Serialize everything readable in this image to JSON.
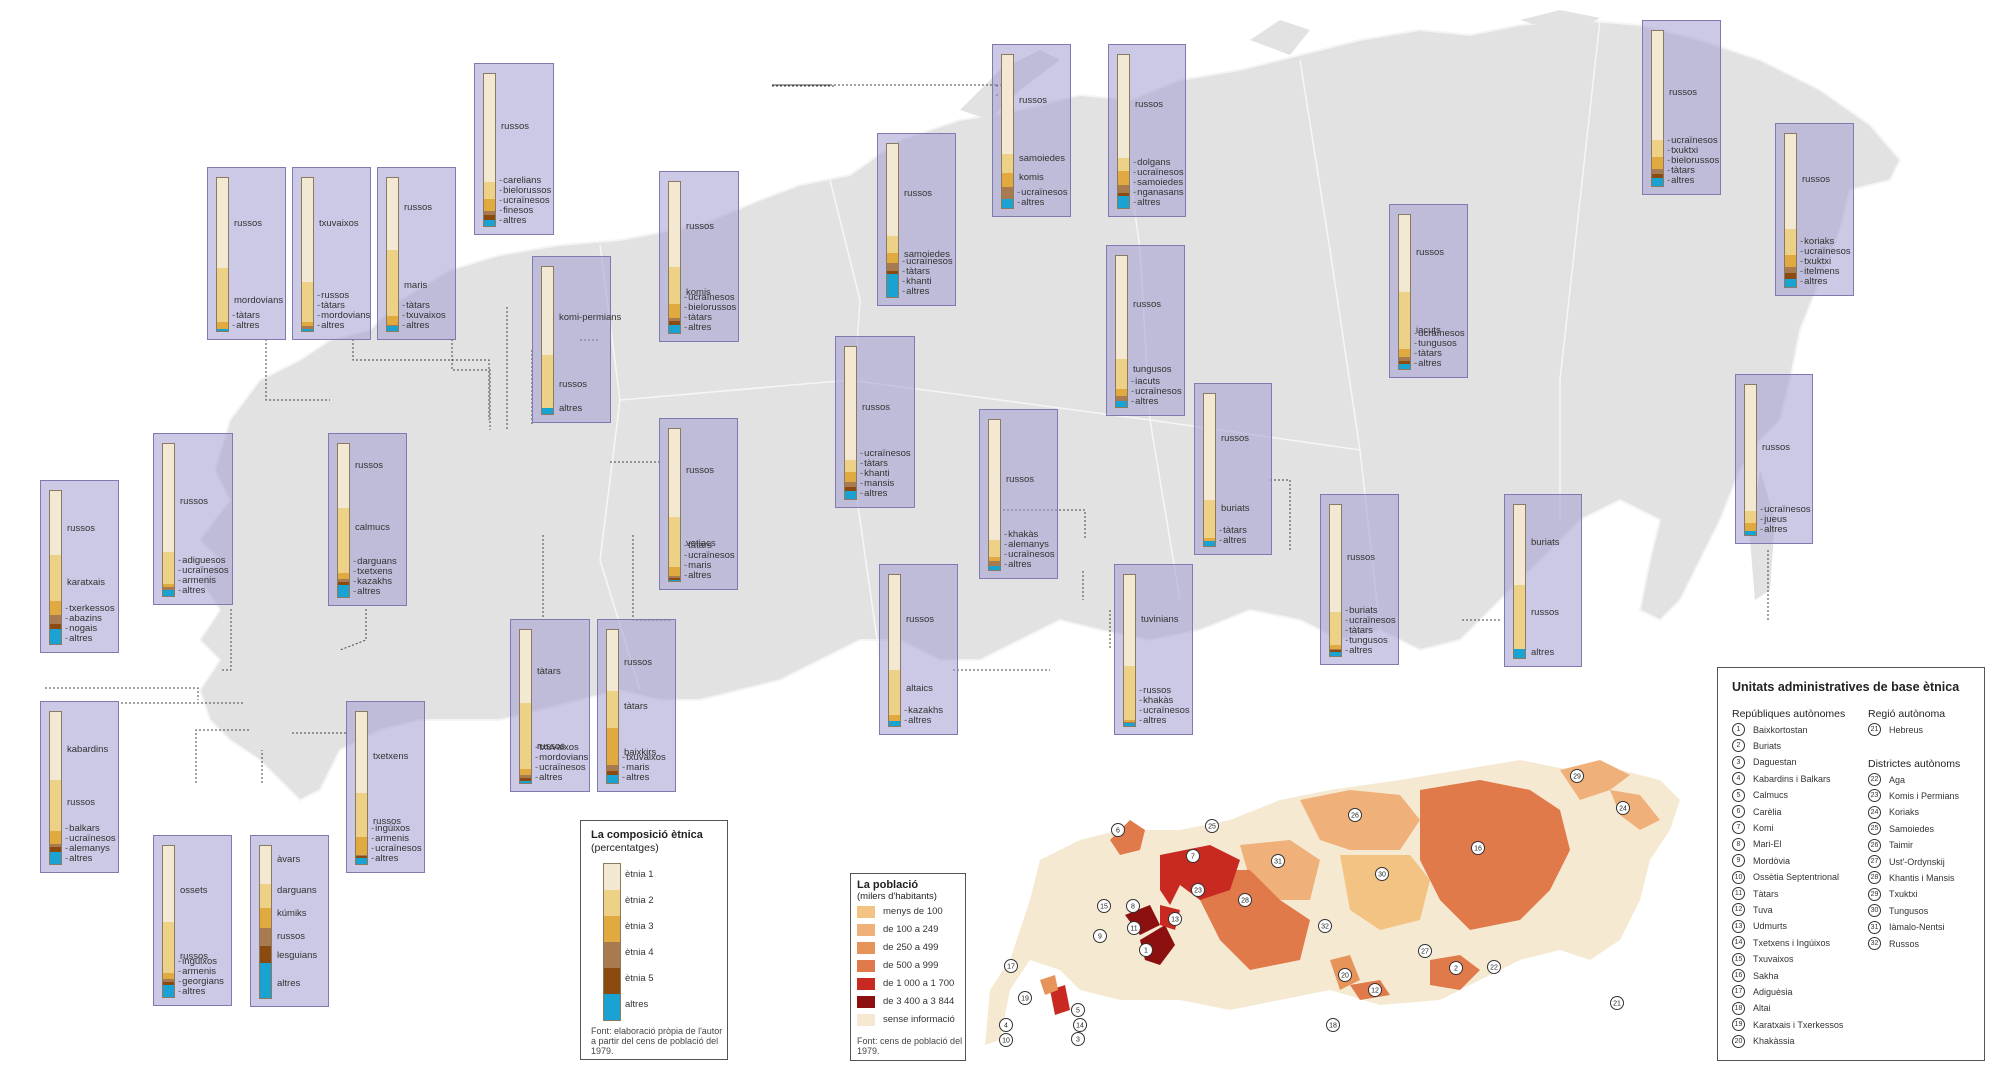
{
  "colors": {
    "etnia1": "#f3e8d2",
    "etnia2": "#ecd186",
    "etnia3": "#e0aa40",
    "etnia4": "#a77a50",
    "etnia5": "#8a4a10",
    "altres": "#1aa3d2",
    "land": "#e2e2e2",
    "box": "#a7a4d2"
  },
  "composition_boxes": [
    {
      "id": "careliа",
      "labels": [
        {
          "text": "russos",
          "big": true,
          "at": 0.35
        },
        {
          "text": "carelians"
        },
        {
          "text": "bielorussos"
        },
        {
          "text": "ucraïnesos"
        },
        {
          "text": "finesos"
        },
        {
          "text": "altres"
        }
      ],
      "shares": [
        71,
        11,
        8,
        3,
        3,
        4
      ]
    },
    {
      "id": "mordovia",
      "labels": [
        {
          "text": "russos",
          "big": true,
          "at": 0.3
        },
        {
          "text": "mordovians",
          "big": true,
          "at": 0.8
        },
        {
          "text": "tàtars"
        },
        {
          "text": "altres"
        }
      ],
      "shares": [
        59,
        35,
        5,
        1
      ]
    },
    {
      "id": "txuvaixia",
      "labels": [
        {
          "text": "txuvaixos",
          "big": true,
          "at": 0.3
        },
        {
          "text": "russos"
        },
        {
          "text": "tàtars"
        },
        {
          "text": "mordovians"
        },
        {
          "text": "altres"
        }
      ],
      "shares": [
        68,
        26,
        3,
        2,
        1
      ]
    },
    {
      "id": "mari",
      "labels": [
        {
          "text": "russos",
          "big": true,
          "at": 0.2
        },
        {
          "text": "maris",
          "big": true,
          "at": 0.7
        },
        {
          "text": "tàtars"
        },
        {
          "text": "txuvaixos"
        },
        {
          "text": "altres"
        }
      ],
      "shares": [
        47,
        43,
        6,
        1,
        3
      ]
    },
    {
      "id": "komi",
      "labels": [
        {
          "text": "russos",
          "big": true,
          "at": 0.3
        },
        {
          "text": "komis",
          "big": true,
          "at": 0.73
        },
        {
          "text": "ucraïnesos"
        },
        {
          "text": "bielorussos"
        },
        {
          "text": "tàtars"
        },
        {
          "text": "altres"
        }
      ],
      "shares": [
        56,
        25,
        9,
        2,
        3,
        5
      ]
    },
    {
      "id": "komi-permiacs",
      "labels": [
        {
          "text": "komi-permians",
          "big": true,
          "at": 0.35
        },
        {
          "text": "russos",
          "big": true,
          "at": 0.8
        },
        {
          "text": "altres",
          "big": true,
          "at": 0.96
        }
      ],
      "shares": [
        60,
        36,
        0,
        0,
        0,
        4
      ]
    },
    {
      "id": "iamal",
      "labels": [
        {
          "text": "russos",
          "big": true,
          "at": 0.33
        },
        {
          "text": "samoiedes",
          "big": true,
          "at": 0.72
        },
        {
          "text": "ucraïnesos"
        },
        {
          "text": "tàtars"
        },
        {
          "text": "khanti"
        },
        {
          "text": "altres"
        }
      ],
      "shares": [
        60,
        11,
        7,
        5,
        2,
        15
      ]
    },
    {
      "id": "nenets",
      "labels": [
        {
          "text": "russos",
          "big": true,
          "at": 0.3
        },
        {
          "text": "samoiedes",
          "big": true,
          "at": 0.68
        },
        {
          "text": "komis",
          "big": true,
          "at": 0.8
        },
        {
          "text": "ucraïnesos"
        },
        {
          "text": "altres"
        }
      ],
      "shares": [
        65,
        12,
        9,
        8,
        0,
        6
      ]
    },
    {
      "id": "taimir",
      "labels": [
        {
          "text": "russos",
          "big": true,
          "at": 0.33
        },
        {
          "text": "dolgans"
        },
        {
          "text": "ucraïnesos"
        },
        {
          "text": "samoiedes"
        },
        {
          "text": "nganasans"
        },
        {
          "text": "altres"
        }
      ],
      "shares": [
        67,
        9,
        9,
        5,
        2,
        8
      ]
    },
    {
      "id": "txukotka",
      "labels": [
        {
          "text": "russos",
          "big": true,
          "at": 0.4
        },
        {
          "text": "ucraïnesos"
        },
        {
          "text": "txuktxi"
        },
        {
          "text": "bielorussos"
        },
        {
          "text": "tàtars"
        },
        {
          "text": "altres"
        }
      ],
      "shares": [
        70,
        11,
        8,
        3,
        3,
        5
      ]
    },
    {
      "id": "koriak",
      "labels": [
        {
          "text": "russos",
          "big": true,
          "at": 0.3
        },
        {
          "text": "koriaks"
        },
        {
          "text": "ucraïnesos"
        },
        {
          "text": "txuktxi"
        },
        {
          "text": "itelmens"
        },
        {
          "text": "altres"
        }
      ],
      "shares": [
        62,
        17,
        8,
        4,
        4,
        5
      ]
    },
    {
      "id": "sakha",
      "labels": [
        {
          "text": "russos",
          "big": true,
          "at": 0.25
        },
        {
          "text": "iacuts",
          "big": true,
          "at": 0.75
        },
        {
          "text": "ucraïnesos"
        },
        {
          "text": "tungusos"
        },
        {
          "text": "tàtars"
        },
        {
          "text": "altres"
        }
      ],
      "shares": [
        50,
        37,
        5,
        3,
        2,
        3
      ]
    },
    {
      "id": "evenk",
      "labels": [
        {
          "text": "russos",
          "big": true,
          "at": 0.33
        },
        {
          "text": "tungusos",
          "big": true,
          "at": 0.75
        },
        {
          "text": "iacuts"
        },
        {
          "text": "ucraïnesos"
        },
        {
          "text": "altres"
        }
      ],
      "shares": [
        68,
        20,
        5,
        3,
        0,
        4
      ]
    },
    {
      "id": "khanti",
      "labels": [
        {
          "text": "russos",
          "big": true,
          "at": 0.4
        },
        {
          "text": "ucraïnesos"
        },
        {
          "text": "tàtars"
        },
        {
          "text": "khanti"
        },
        {
          "text": "mansis"
        },
        {
          "text": "altres"
        }
      ],
      "shares": [
        74,
        8,
        7,
        3,
        3,
        5
      ]
    },
    {
      "id": "udmurtia",
      "labels": [
        {
          "text": "russos",
          "big": true,
          "at": 0.28
        },
        {
          "text": "votiacs",
          "big": true,
          "at": 0.75
        },
        {
          "text": "tàtars"
        },
        {
          "text": "ucraïnesos"
        },
        {
          "text": "maris"
        },
        {
          "text": "altres"
        }
      ],
      "shares": [
        58,
        33,
        6,
        1,
        1,
        1
      ]
    },
    {
      "id": "khakassia",
      "labels": [
        {
          "text": "russos",
          "big": true,
          "at": 0.4
        },
        {
          "text": "khakàs"
        },
        {
          "text": "alemanys"
        },
        {
          "text": "ucraïnesos"
        },
        {
          "text": "altres"
        }
      ],
      "shares": [
        80,
        11,
        3,
        3,
        0,
        3
      ]
    },
    {
      "id": "buriatia",
      "labels": [
        {
          "text": "russos",
          "big": true,
          "at": 0.3
        },
        {
          "text": "buriats",
          "big": true,
          "at": 0.75
        },
        {
          "text": "tàtars"
        },
        {
          "text": "altres"
        }
      ],
      "shares": [
        70,
        25,
        2,
        3
      ]
    },
    {
      "id": "ust-ordinski",
      "labels": [
        {
          "text": "russos",
          "big": true,
          "at": 0.35
        },
        {
          "text": "buriats"
        },
        {
          "text": "ucraïnesos"
        },
        {
          "text": "tàtars"
        },
        {
          "text": "tungusos"
        },
        {
          "text": "altres"
        }
      ],
      "shares": [
        71,
        22,
        2,
        1,
        1,
        3
      ]
    },
    {
      "id": "aga",
      "labels": [
        {
          "text": "buriats",
          "big": true,
          "at": 0.25
        },
        {
          "text": "russos",
          "big": true,
          "at": 0.7
        },
        {
          "text": "altres",
          "big": true,
          "at": 0.96
        }
      ],
      "shares": [
        52,
        42,
        0,
        0,
        0,
        6
      ]
    },
    {
      "id": "hebreus",
      "labels": [
        {
          "text": "russos",
          "big": true,
          "at": 0.42
        },
        {
          "text": "ucraïnesos"
        },
        {
          "text": "jueus"
        },
        {
          "text": "altres"
        }
      ],
      "shares": [
        84,
        8,
        5,
        3
      ]
    },
    {
      "id": "tuva",
      "labels": [
        {
          "text": "tuvinians",
          "big": true,
          "at": 0.3
        },
        {
          "text": "russos"
        },
        {
          "text": "khakàs"
        },
        {
          "text": "ucraïnesos"
        },
        {
          "text": "altres"
        }
      ],
      "shares": [
        60,
        36,
        1,
        1,
        0,
        2
      ]
    },
    {
      "id": "altai",
      "labels": [
        {
          "text": "russos",
          "big": true,
          "at": 0.3
        },
        {
          "text": "altaics",
          "big": true,
          "at": 0.75
        },
        {
          "text": "kazakhs"
        },
        {
          "text": "altres"
        }
      ],
      "shares": [
        63,
        30,
        4,
        0,
        0,
        3
      ]
    },
    {
      "id": "tatarstan",
      "labels": [
        {
          "text": "tàtars",
          "big": true,
          "at": 0.28
        },
        {
          "text": "russos",
          "big": true,
          "at": 0.76
        },
        {
          "text": "txuvaixos"
        },
        {
          "text": "mordovians"
        },
        {
          "text": "ucraïnesos"
        },
        {
          "text": "altres"
        }
      ],
      "shares": [
        48,
        43,
        4,
        2,
        2,
        1
      ]
    },
    {
      "id": "baixkortostan",
      "labels": [
        {
          "text": "russos",
          "big": true,
          "at": 0.22
        },
        {
          "text": "tàtars",
          "big": true,
          "at": 0.5
        },
        {
          "text": "baixkirs",
          "big": true,
          "at": 0.8
        },
        {
          "text": "txuvaixos"
        },
        {
          "text": "maris"
        },
        {
          "text": "altres"
        }
      ],
      "shares": [
        40,
        24,
        24,
        4,
        3,
        5
      ]
    },
    {
      "id": "calmuquia",
      "labels": [
        {
          "text": "russos",
          "big": true,
          "at": 0.15
        },
        {
          "text": "calmucs",
          "big": true,
          "at": 0.55
        },
        {
          "text": "darguans"
        },
        {
          "text": "txetxens"
        },
        {
          "text": "kazakhs"
        },
        {
          "text": "altres"
        }
      ],
      "shares": [
        42,
        42,
        4,
        2,
        2,
        8
      ]
    },
    {
      "id": "adiguea",
      "labels": [
        {
          "text": "russos",
          "big": true,
          "at": 0.38
        },
        {
          "text": "adiguesos"
        },
        {
          "text": "ucraïnesos"
        },
        {
          "text": "armenis"
        },
        {
          "text": "altres"
        }
      ],
      "shares": [
        71,
        21,
        2,
        2,
        0,
        4
      ]
    },
    {
      "id": "karatxai",
      "labels": [
        {
          "text": "russos",
          "big": true,
          "at": 0.25
        },
        {
          "text": "karatxais",
          "big": true,
          "at": 0.6
        },
        {
          "text": "txerkessos"
        },
        {
          "text": "abazins"
        },
        {
          "text": "nogais"
        },
        {
          "text": "altres"
        }
      ],
      "shares": [
        42,
        30,
        9,
        6,
        3,
        10
      ]
    },
    {
      "id": "kabardino",
      "labels": [
        {
          "text": "kabardins",
          "big": true,
          "at": 0.25
        },
        {
          "text": "russos",
          "big": true,
          "at": 0.6
        },
        {
          "text": "balkars"
        },
        {
          "text": "ucraïnesos"
        },
        {
          "text": "alemanys"
        },
        {
          "text": "altres"
        }
      ],
      "shares": [
        45,
        33,
        9,
        2,
        3,
        8
      ]
    },
    {
      "id": "ossetia",
      "labels": [
        {
          "text": "ossets",
          "big": true,
          "at": 0.3
        },
        {
          "text": "russos",
          "big": true,
          "at": 0.73
        },
        {
          "text": "ingúixos"
        },
        {
          "text": "armenis"
        },
        {
          "text": "georgians"
        },
        {
          "text": "altres"
        }
      ],
      "shares": [
        50,
        34,
        4,
        2,
        2,
        8
      ]
    },
    {
      "id": "daguestan",
      "labels": [
        {
          "text": "àvars",
          "big": true,
          "at": 0.1
        },
        {
          "text": "darguans",
          "big": true,
          "at": 0.3
        },
        {
          "text": "kúmiks",
          "big": true,
          "at": 0.45
        },
        {
          "text": "russos",
          "big": true,
          "at": 0.6
        },
        {
          "text": "lesguians",
          "big": true,
          "at": 0.72
        },
        {
          "text": "altres",
          "big": true,
          "at": 0.9
        }
      ],
      "shares": [
        25,
        16,
        13,
        12,
        11,
        23
      ]
    },
    {
      "id": "txetxenia",
      "labels": [
        {
          "text": "txetxens",
          "big": true,
          "at": 0.3
        },
        {
          "text": "russos",
          "big": true,
          "at": 0.72
        },
        {
          "text": "ingúixos"
        },
        {
          "text": "armenis"
        },
        {
          "text": "ucraïnesos"
        },
        {
          "text": "altres"
        }
      ],
      "shares": [
        53,
        29,
        12,
        1,
        1,
        4
      ]
    }
  ],
  "legend_composition": {
    "title": "La composició ètnica",
    "subtitle": "(percentatges)",
    "items": [
      "ètnia 1",
      "ètnia 2",
      "ètnia 3",
      "ètnia 4",
      "ètnia 5",
      "altres"
    ],
    "source": [
      "Font: elaboració pròpia de l'autor",
      "a partir del cens de població del",
      "1979."
    ]
  },
  "legend_population": {
    "title": "La població",
    "subtitle": "(milers d'habitants)",
    "items": [
      {
        "label": "menys de 100",
        "color": "#f3c384"
      },
      {
        "label": "de 100 a 249",
        "color": "#efb07a"
      },
      {
        "label": "de 250 a 499",
        "color": "#e7945a"
      },
      {
        "label": "de 500 a 999",
        "color": "#e07a4a"
      },
      {
        "label": "de 1 000 a 1 700",
        "color": "#c82a22"
      },
      {
        "label": "de 3 400 a 3 844",
        "color": "#8c1010"
      },
      {
        "label": "sense informació",
        "color": "#f5e9d2"
      }
    ],
    "source": [
      "Font: cens de població del",
      "1979."
    ]
  },
  "units": {
    "title": "Unitats administratives de base ètnica",
    "republics_head": "Repúbliques autònomes",
    "region_head": "Regió autònoma",
    "districts_head": "Districtes autònoms",
    "republics": [
      {
        "n": "1",
        "name": "Baixkortostan"
      },
      {
        "n": "2",
        "name": "Buriats"
      },
      {
        "n": "3",
        "name": "Daguestan"
      },
      {
        "n": "4",
        "name": "Kabardins i Balkars"
      },
      {
        "n": "5",
        "name": "Calmucs"
      },
      {
        "n": "6",
        "name": "Carèlia"
      },
      {
        "n": "7",
        "name": "Komi"
      },
      {
        "n": "8",
        "name": "Mari-El"
      },
      {
        "n": "9",
        "name": "Mordòvia"
      },
      {
        "n": "10",
        "name": "Ossètia Septentrional"
      },
      {
        "n": "11",
        "name": "Tàtars"
      },
      {
        "n": "12",
        "name": "Tuva"
      },
      {
        "n": "13",
        "name": "Udmurts"
      },
      {
        "n": "14",
        "name": "Txetxens i Ingúixos"
      },
      {
        "n": "15",
        "name": "Txuvaixos"
      },
      {
        "n": "16",
        "name": "Sakha"
      },
      {
        "n": "17",
        "name": "Adiguèsia"
      },
      {
        "n": "18",
        "name": "Altai"
      },
      {
        "n": "19",
        "name": "Karatxais i Txerkessos"
      },
      {
        "n": "20",
        "name": "Khakàssia"
      }
    ],
    "region": [
      {
        "n": "21",
        "name": "Hebreus"
      }
    ],
    "districts": [
      {
        "n": "22",
        "name": "Aga"
      },
      {
        "n": "23",
        "name": "Komis i Permians"
      },
      {
        "n": "24",
        "name": "Koriaks"
      },
      {
        "n": "25",
        "name": "Samoiedes"
      },
      {
        "n": "26",
        "name": "Taimir"
      },
      {
        "n": "27",
        "name": "Ust'-Ordynskij"
      },
      {
        "n": "28",
        "name": "Khantis i Mansis"
      },
      {
        "n": "29",
        "name": "Txuktxi"
      },
      {
        "n": "30",
        "name": "Tungusos"
      },
      {
        "n": "31",
        "name": "Iàmalo-Nentsi"
      },
      {
        "n": "32",
        "name": "Russos"
      }
    ]
  },
  "mini_map_labels": [
    "1",
    "2",
    "3",
    "4",
    "5",
    "6",
    "7",
    "8",
    "9",
    "10",
    "11",
    "12",
    "13",
    "14",
    "15",
    "16",
    "17",
    "18",
    "19",
    "20",
    "21",
    "22",
    "23",
    "24",
    "25",
    "26",
    "27",
    "28",
    "29",
    "30",
    "31",
    "32"
  ]
}
